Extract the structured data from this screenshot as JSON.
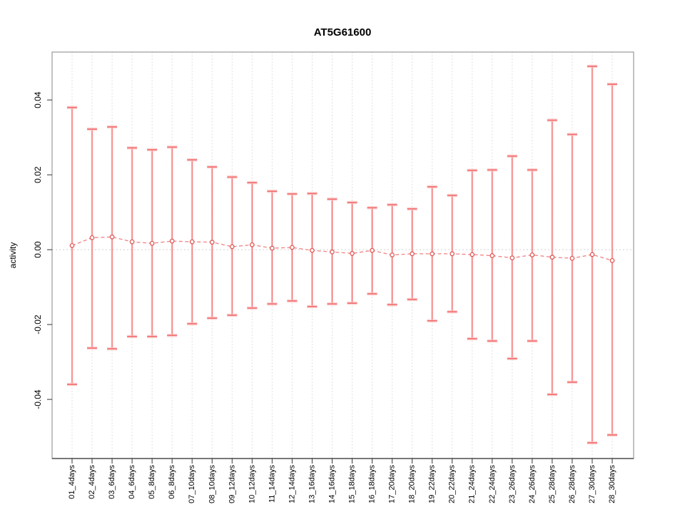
{
  "chart_data": {
    "type": "scatter",
    "title": "AT5G61600",
    "xlabel": "",
    "ylabel": "activity",
    "categories": [
      "01_4days",
      "02_4days",
      "03_6days",
      "04_6days",
      "05_8days",
      "06_8days",
      "07_10days",
      "08_10days",
      "09_12days",
      "10_12days",
      "11_14days",
      "12_14days",
      "13_16days",
      "14_16days",
      "15_18days",
      "16_18days",
      "17_20days",
      "18_20days",
      "19_22days",
      "20_22days",
      "21_24days",
      "22_24days",
      "23_26days",
      "24_26days",
      "25_28days",
      "26_28days",
      "27_30days",
      "28_30days"
    ],
    "series": [
      {
        "name": "activity",
        "values": [
          0.0011,
          0.0032,
          0.0034,
          0.0021,
          0.0017,
          0.0023,
          0.0021,
          0.002,
          0.0008,
          0.0013,
          0.0004,
          0.0006,
          -0.0002,
          -0.0006,
          -0.001,
          -0.0002,
          -0.0014,
          -0.0011,
          -0.0011,
          -0.0011,
          -0.0013,
          -0.0016,
          -0.0022,
          -0.0014,
          -0.002,
          -0.0023,
          -0.0013,
          -0.0029
        ],
        "upper": [
          0.038,
          0.0322,
          0.0328,
          0.0272,
          0.0267,
          0.0274,
          0.024,
          0.0221,
          0.0194,
          0.0179,
          0.0156,
          0.0149,
          0.015,
          0.0135,
          0.0126,
          0.0112,
          0.012,
          0.0109,
          0.0168,
          0.0145,
          0.0212,
          0.0213,
          0.025,
          0.0213,
          0.0346,
          0.0308,
          0.049,
          0.0442
        ],
        "lower": [
          -0.036,
          -0.0263,
          -0.0265,
          -0.0232,
          -0.0232,
          -0.0229,
          -0.0198,
          -0.0183,
          -0.0175,
          -0.0156,
          -0.0145,
          -0.0137,
          -0.0152,
          -0.0145,
          -0.0143,
          -0.0118,
          -0.0147,
          -0.0133,
          -0.019,
          -0.0166,
          -0.0238,
          -0.0244,
          -0.0291,
          -0.0244,
          -0.0387,
          -0.0354,
          -0.0516,
          -0.0495
        ]
      }
    ],
    "yticks": [
      -0.04,
      -0.02,
      0,
      0.02,
      0.04
    ],
    "ytick_labels": [
      "-0.04",
      "-0.02",
      "0.00",
      "0.02",
      "0.04"
    ],
    "ylim": [
      -0.0558,
      0.0528
    ],
    "zero_line": true,
    "grid": "vertical-dotted",
    "legend": "none",
    "marker": "open-circle",
    "line_style": "dashed",
    "colors": {
      "errorbar": "#f26a6a",
      "errorbar_halo": "#fac2c2",
      "point": "#e05555",
      "point_fill": "#ffffff",
      "dash_line": "#ef7474",
      "grid": "#dcdcdc",
      "zero_line_color": "#d0d0d0",
      "axis": "#333333",
      "box": "#9a9a9a",
      "text": "#000000"
    }
  }
}
